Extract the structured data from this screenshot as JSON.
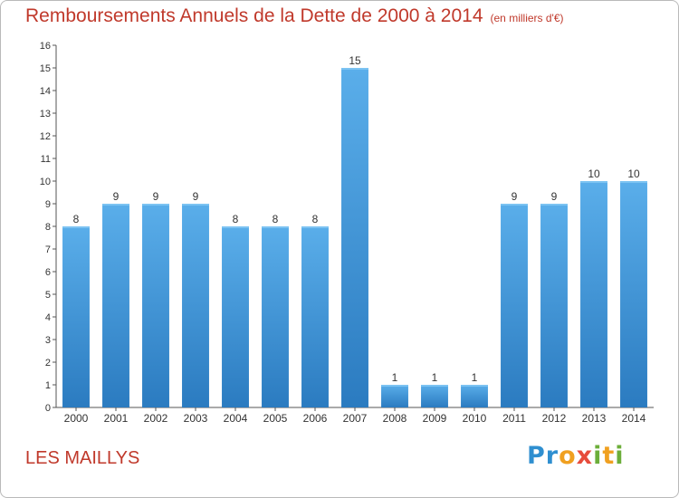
{
  "title": "Remboursements Annuels de la Dette de 2000 à 2014",
  "subtitle": "(en milliers d'€)",
  "location": "LES MAILLYS",
  "logo": {
    "text": "Proxiti"
  },
  "colors": {
    "bar": "#4a9fe0",
    "title": "#c0392b",
    "axis": "#555555"
  },
  "chart_data": {
    "type": "bar",
    "title": "Remboursements Annuels de la Dette de 2000 à 2014",
    "ylabel": "",
    "xlabel": "",
    "ylim": [
      0,
      16
    ],
    "yticks": [
      0,
      1,
      2,
      3,
      4,
      5,
      6,
      7,
      8,
      9,
      10,
      11,
      12,
      13,
      14,
      15,
      16
    ],
    "grid": false,
    "categories": [
      "2000",
      "2001",
      "2002",
      "2003",
      "2004",
      "2005",
      "2006",
      "2007",
      "2008",
      "2009",
      "2010",
      "2011",
      "2012",
      "2013",
      "2014"
    ],
    "values": [
      8,
      9,
      9,
      9,
      8,
      8,
      8,
      15,
      1,
      1,
      1,
      9,
      9,
      10,
      10
    ]
  }
}
